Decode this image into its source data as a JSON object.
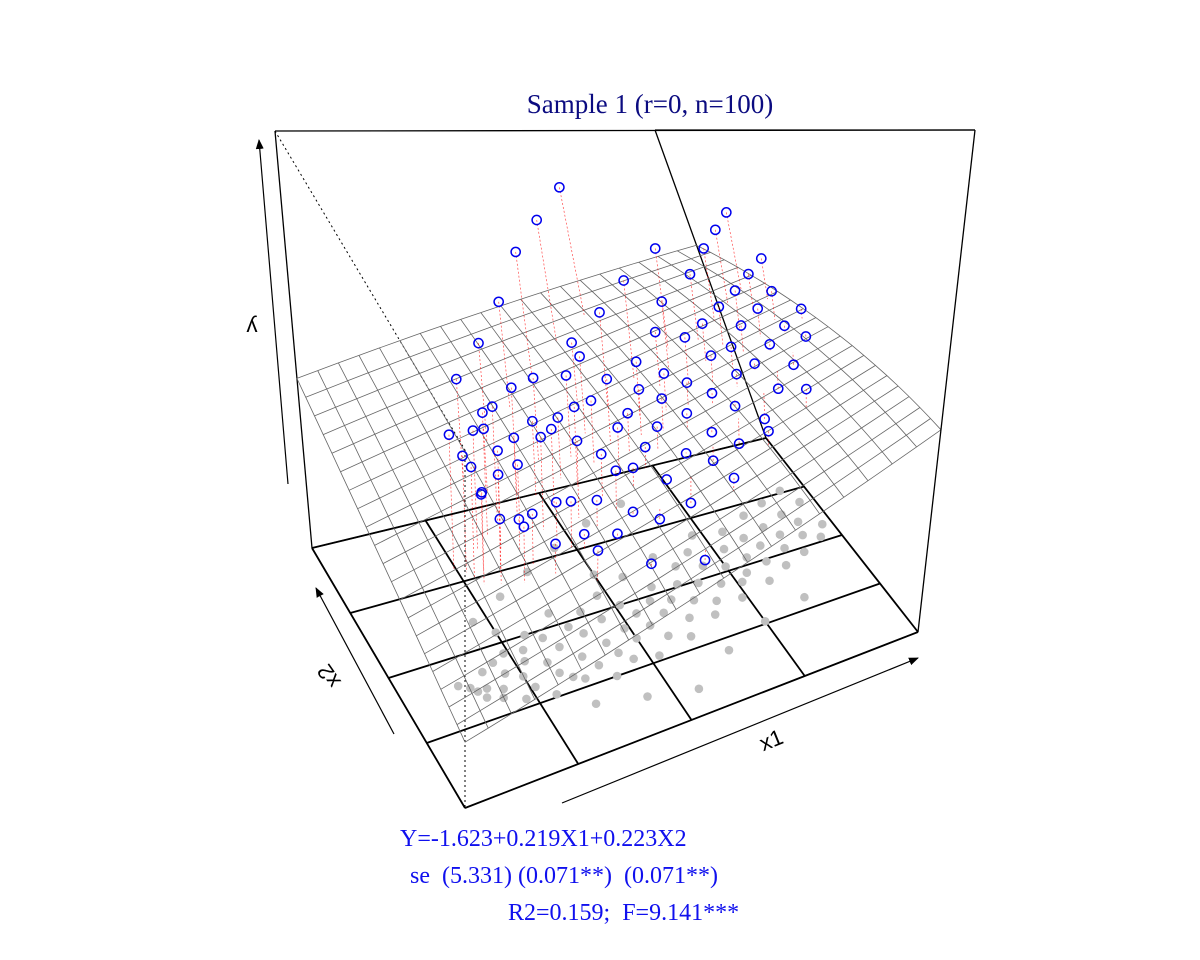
{
  "chart_data": {
    "type": "scatter",
    "projection": "3d-perspective",
    "title": "Sample 1 (r=0, n=100)",
    "xlabel": "x1",
    "ylabel": "x2",
    "zlabel": "y",
    "xlim": [
      0,
      100
    ],
    "ylim": [
      0,
      100
    ],
    "zlim": [
      -20,
      80
    ],
    "fitted_plane": {
      "intercept": -1.623,
      "b_x1": 0.219,
      "b_x2": 0.223
    },
    "floor_grid_divisions": 4,
    "plane_grid_divisions": 20,
    "series": [
      {
        "marker": "open-circle",
        "color": "#0000ee",
        "shadow_color": "#c0c0c0",
        "residual_color": "#ff0000",
        "points": [
          [
            12,
            40,
            45
          ],
          [
            14,
            38,
            40
          ],
          [
            15,
            36,
            38
          ],
          [
            16,
            33,
            33
          ],
          [
            17,
            36,
            30
          ],
          [
            18,
            42,
            42
          ],
          [
            19,
            31,
            26
          ],
          [
            20,
            34,
            35
          ],
          [
            21,
            44,
            44
          ],
          [
            22,
            39,
            37
          ],
          [
            23,
            28,
            24
          ],
          [
            24,
            46,
            43
          ],
          [
            25,
            36,
            20
          ],
          [
            26,
            31,
            24
          ],
          [
            27,
            41,
            30
          ],
          [
            28,
            45,
            34
          ],
          [
            29,
            26,
            18
          ],
          [
            30,
            50,
            43
          ],
          [
            31,
            38,
            37
          ],
          [
            32,
            33,
            23
          ],
          [
            33,
            47,
            35
          ],
          [
            34,
            30,
            24
          ],
          [
            35,
            42,
            35
          ],
          [
            36,
            28,
            16
          ],
          [
            37,
            55,
            40
          ],
          [
            38,
            36,
            34
          ],
          [
            39,
            48,
            33
          ],
          [
            40,
            31,
            21
          ],
          [
            41,
            44,
            37
          ],
          [
            42,
            25,
            15
          ],
          [
            43,
            52,
            40
          ],
          [
            44,
            38,
            27
          ],
          [
            45,
            33,
            25
          ],
          [
            46,
            47,
            35
          ],
          [
            47,
            29,
            16
          ],
          [
            48,
            56,
            41
          ],
          [
            49,
            41,
            30
          ],
          [
            50,
            36,
            22
          ],
          [
            51,
            50,
            37
          ],
          [
            52,
            27,
            13
          ],
          [
            53,
            45,
            30
          ],
          [
            54,
            39,
            24
          ],
          [
            55,
            60,
            48
          ],
          [
            56,
            33,
            18
          ],
          [
            57,
            48,
            33
          ],
          [
            58,
            42,
            26
          ],
          [
            59,
            53,
            37
          ],
          [
            60,
            30,
            12
          ],
          [
            61,
            46,
            30
          ],
          [
            62,
            37,
            20
          ],
          [
            63,
            64,
            52
          ],
          [
            64,
            51,
            33
          ],
          [
            65,
            43,
            26
          ],
          [
            66,
            58,
            40
          ],
          [
            67,
            35,
            17
          ],
          [
            68,
            49,
            30
          ],
          [
            69,
            40,
            21
          ],
          [
            70,
            62,
            45
          ],
          [
            71,
            55,
            38
          ],
          [
            72,
            46,
            27
          ],
          [
            73,
            68,
            56
          ],
          [
            74,
            38,
            17
          ],
          [
            75,
            52,
            33
          ],
          [
            76,
            44,
            23
          ],
          [
            77,
            59,
            38
          ],
          [
            78,
            47,
            29
          ],
          [
            79,
            66,
            48
          ],
          [
            80,
            53,
            33
          ],
          [
            81,
            41,
            19
          ],
          [
            82,
            61,
            40
          ],
          [
            83,
            49,
            29
          ],
          [
            84,
            56,
            36
          ],
          [
            85,
            70,
            52
          ],
          [
            86,
            45,
            23
          ],
          [
            87,
            63,
            42
          ],
          [
            88,
            52,
            31
          ],
          [
            89,
            58,
            38
          ],
          [
            90,
            73,
            55
          ],
          [
            91,
            48,
            26
          ],
          [
            92,
            66,
            44
          ],
          [
            93,
            55,
            33
          ],
          [
            94,
            61,
            40
          ],
          [
            95,
            76,
            58
          ],
          [
            96,
            52,
            30
          ],
          [
            97,
            69,
            46
          ],
          [
            98,
            57,
            35
          ],
          [
            22,
            60,
            42
          ],
          [
            30,
            66,
            45
          ],
          [
            38,
            72,
            50
          ],
          [
            46,
            78,
            58
          ],
          [
            55,
            84,
            62
          ],
          [
            64,
            88,
            68
          ],
          [
            35,
            18,
            18
          ],
          [
            45,
            14,
            12
          ],
          [
            55,
            10,
            10
          ],
          [
            65,
            20,
            20
          ],
          [
            75,
            26,
            24
          ],
          [
            85,
            30,
            28
          ],
          [
            25,
            54,
            32
          ],
          [
            50,
            64,
            40
          ]
        ]
      }
    ]
  },
  "annotations": {
    "equation": "Y=-1.623+0.219X1+0.223X2",
    "standard_errors": "se  (5.331) (0.071**)  (0.071**)",
    "fit_stats": "R2=0.159;  F=9.141***"
  }
}
